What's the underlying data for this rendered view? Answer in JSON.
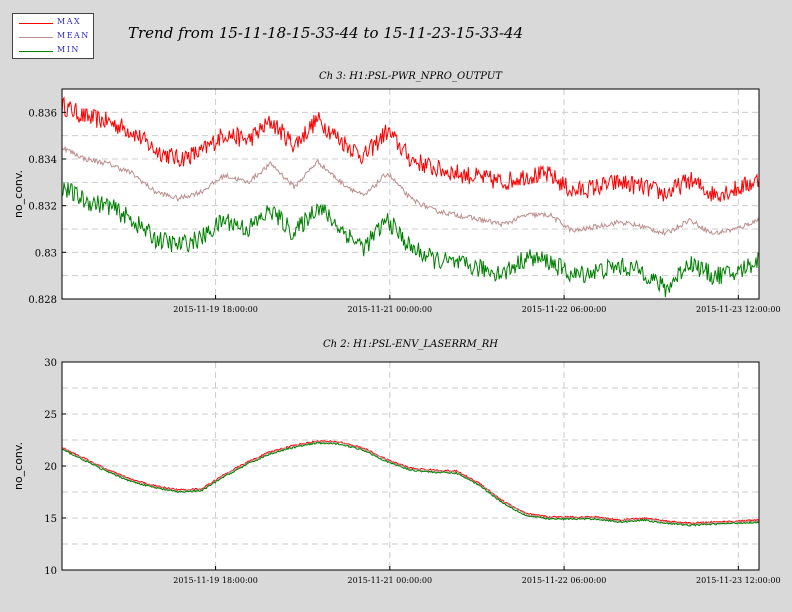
{
  "title": "Trend from 15-11-18-15-33-44 to 15-11-23-15-33-44",
  "legend": [
    {
      "label": "MAX",
      "color": "#ff0000"
    },
    {
      "label": "MEAN",
      "color": "#bc8f8f"
    },
    {
      "label": "MIN",
      "color": "#008000"
    }
  ],
  "chart_data": [
    {
      "type": "line",
      "title": "Ch 3: H1:PSL-PWR_NPRO_OUTPUT",
      "ylabel": "no_conv.",
      "ylim": [
        0.828,
        0.837
      ],
      "yticks": [
        0.828,
        0.83,
        0.832,
        0.834,
        0.836
      ],
      "ytick_labels": [
        "0.828",
        "0.83",
        "0.832",
        "0.834",
        "0.836"
      ],
      "xlim_hours": [
        0,
        120
      ],
      "xticks_hours": [
        26.44,
        56.44,
        86.44,
        116.44
      ],
      "xtick_labels": [
        "2015-11-19 18:00:00",
        "2015-11-21 00:00:00",
        "2015-11-22 06:00:00",
        "2015-11-23 12:00:00"
      ],
      "grid": true,
      "x_hours": [
        0,
        4,
        8,
        12,
        16,
        20,
        24,
        28,
        32,
        36,
        40,
        44,
        48,
        52,
        56,
        60,
        64,
        68,
        72,
        76,
        80,
        84,
        88,
        92,
        96,
        100,
        104,
        108,
        112,
        116,
        120
      ],
      "series": [
        {
          "name": "MAX",
          "color": "#ff0000",
          "values": [
            0.8363,
            0.8358,
            0.8356,
            0.8352,
            0.8344,
            0.834,
            0.8343,
            0.8351,
            0.8348,
            0.8356,
            0.8346,
            0.8357,
            0.8348,
            0.8341,
            0.8352,
            0.834,
            0.8336,
            0.8334,
            0.8332,
            0.833,
            0.8333,
            0.8333,
            0.8326,
            0.8328,
            0.833,
            0.8328,
            0.8325,
            0.8331,
            0.8325,
            0.8327,
            0.8331
          ]
        },
        {
          "name": "MEAN",
          "color": "#bc8f8f",
          "values": [
            0.8345,
            0.834,
            0.8338,
            0.8334,
            0.8326,
            0.8323,
            0.8326,
            0.8333,
            0.833,
            0.8338,
            0.8328,
            0.8339,
            0.833,
            0.8324,
            0.8334,
            0.8323,
            0.8318,
            0.8316,
            0.8314,
            0.8312,
            0.8316,
            0.8316,
            0.8309,
            0.8311,
            0.8313,
            0.8311,
            0.8308,
            0.8314,
            0.8308,
            0.831,
            0.8314
          ]
        },
        {
          "name": "MIN",
          "color": "#008000",
          "values": [
            0.8328,
            0.8322,
            0.832,
            0.8314,
            0.8306,
            0.8303,
            0.8306,
            0.8314,
            0.831,
            0.8318,
            0.8308,
            0.832,
            0.831,
            0.8302,
            0.8314,
            0.8302,
            0.8297,
            0.8295,
            0.8293,
            0.8291,
            0.8298,
            0.8296,
            0.829,
            0.8292,
            0.8294,
            0.8292,
            0.8284,
            0.8296,
            0.829,
            0.8291,
            0.8297
          ]
        }
      ]
    },
    {
      "type": "line",
      "title": "Ch 2: H1:PSL-ENV_LASERRM_RH",
      "ylabel": "no_conv.",
      "ylim": [
        10,
        30
      ],
      "yticks": [
        10,
        15,
        20,
        25,
        30
      ],
      "ytick_labels": [
        "10",
        "15",
        "20",
        "25",
        "30"
      ],
      "xlim_hours": [
        0,
        120
      ],
      "xticks_hours": [
        26.44,
        56.44,
        86.44,
        116.44
      ],
      "xtick_labels": [
        "2015-11-19 18:00:00",
        "2015-11-21 00:00:00",
        "2015-11-22 06:00:00",
        "2015-11-23 12:00:00"
      ],
      "grid": true,
      "x_hours": [
        0,
        4,
        8,
        12,
        16,
        20,
        24,
        28,
        32,
        36,
        40,
        44,
        48,
        52,
        56,
        60,
        64,
        68,
        72,
        76,
        80,
        84,
        88,
        92,
        96,
        100,
        104,
        108,
        112,
        116,
        120
      ],
      "series": [
        {
          "name": "MAX",
          "color": "#ff0000",
          "values": [
            21.8,
            20.7,
            19.6,
            18.7,
            18.1,
            17.7,
            17.8,
            19.2,
            20.4,
            21.4,
            22.0,
            22.4,
            22.3,
            21.7,
            20.6,
            19.8,
            19.6,
            19.5,
            18.3,
            16.6,
            15.4,
            15.1,
            15.1,
            15.1,
            14.8,
            15.0,
            14.7,
            14.5,
            14.6,
            14.7,
            14.8
          ]
        },
        {
          "name": "MEAN",
          "color": "#bc8f8f",
          "values": [
            21.7,
            20.6,
            19.5,
            18.6,
            18.0,
            17.6,
            17.7,
            19.1,
            20.3,
            21.3,
            21.9,
            22.3,
            22.2,
            21.6,
            20.5,
            19.7,
            19.5,
            19.4,
            18.2,
            16.5,
            15.3,
            15.0,
            15.0,
            15.0,
            14.7,
            14.9,
            14.6,
            14.4,
            14.5,
            14.6,
            14.7
          ]
        },
        {
          "name": "MIN",
          "color": "#008000",
          "values": [
            21.6,
            20.5,
            19.4,
            18.5,
            17.9,
            17.5,
            17.6,
            19.0,
            20.2,
            21.2,
            21.8,
            22.2,
            22.1,
            21.5,
            20.4,
            19.6,
            19.4,
            19.3,
            18.1,
            16.4,
            15.2,
            14.9,
            14.9,
            14.9,
            14.6,
            14.8,
            14.5,
            14.3,
            14.4,
            14.5,
            14.6
          ]
        }
      ]
    }
  ]
}
